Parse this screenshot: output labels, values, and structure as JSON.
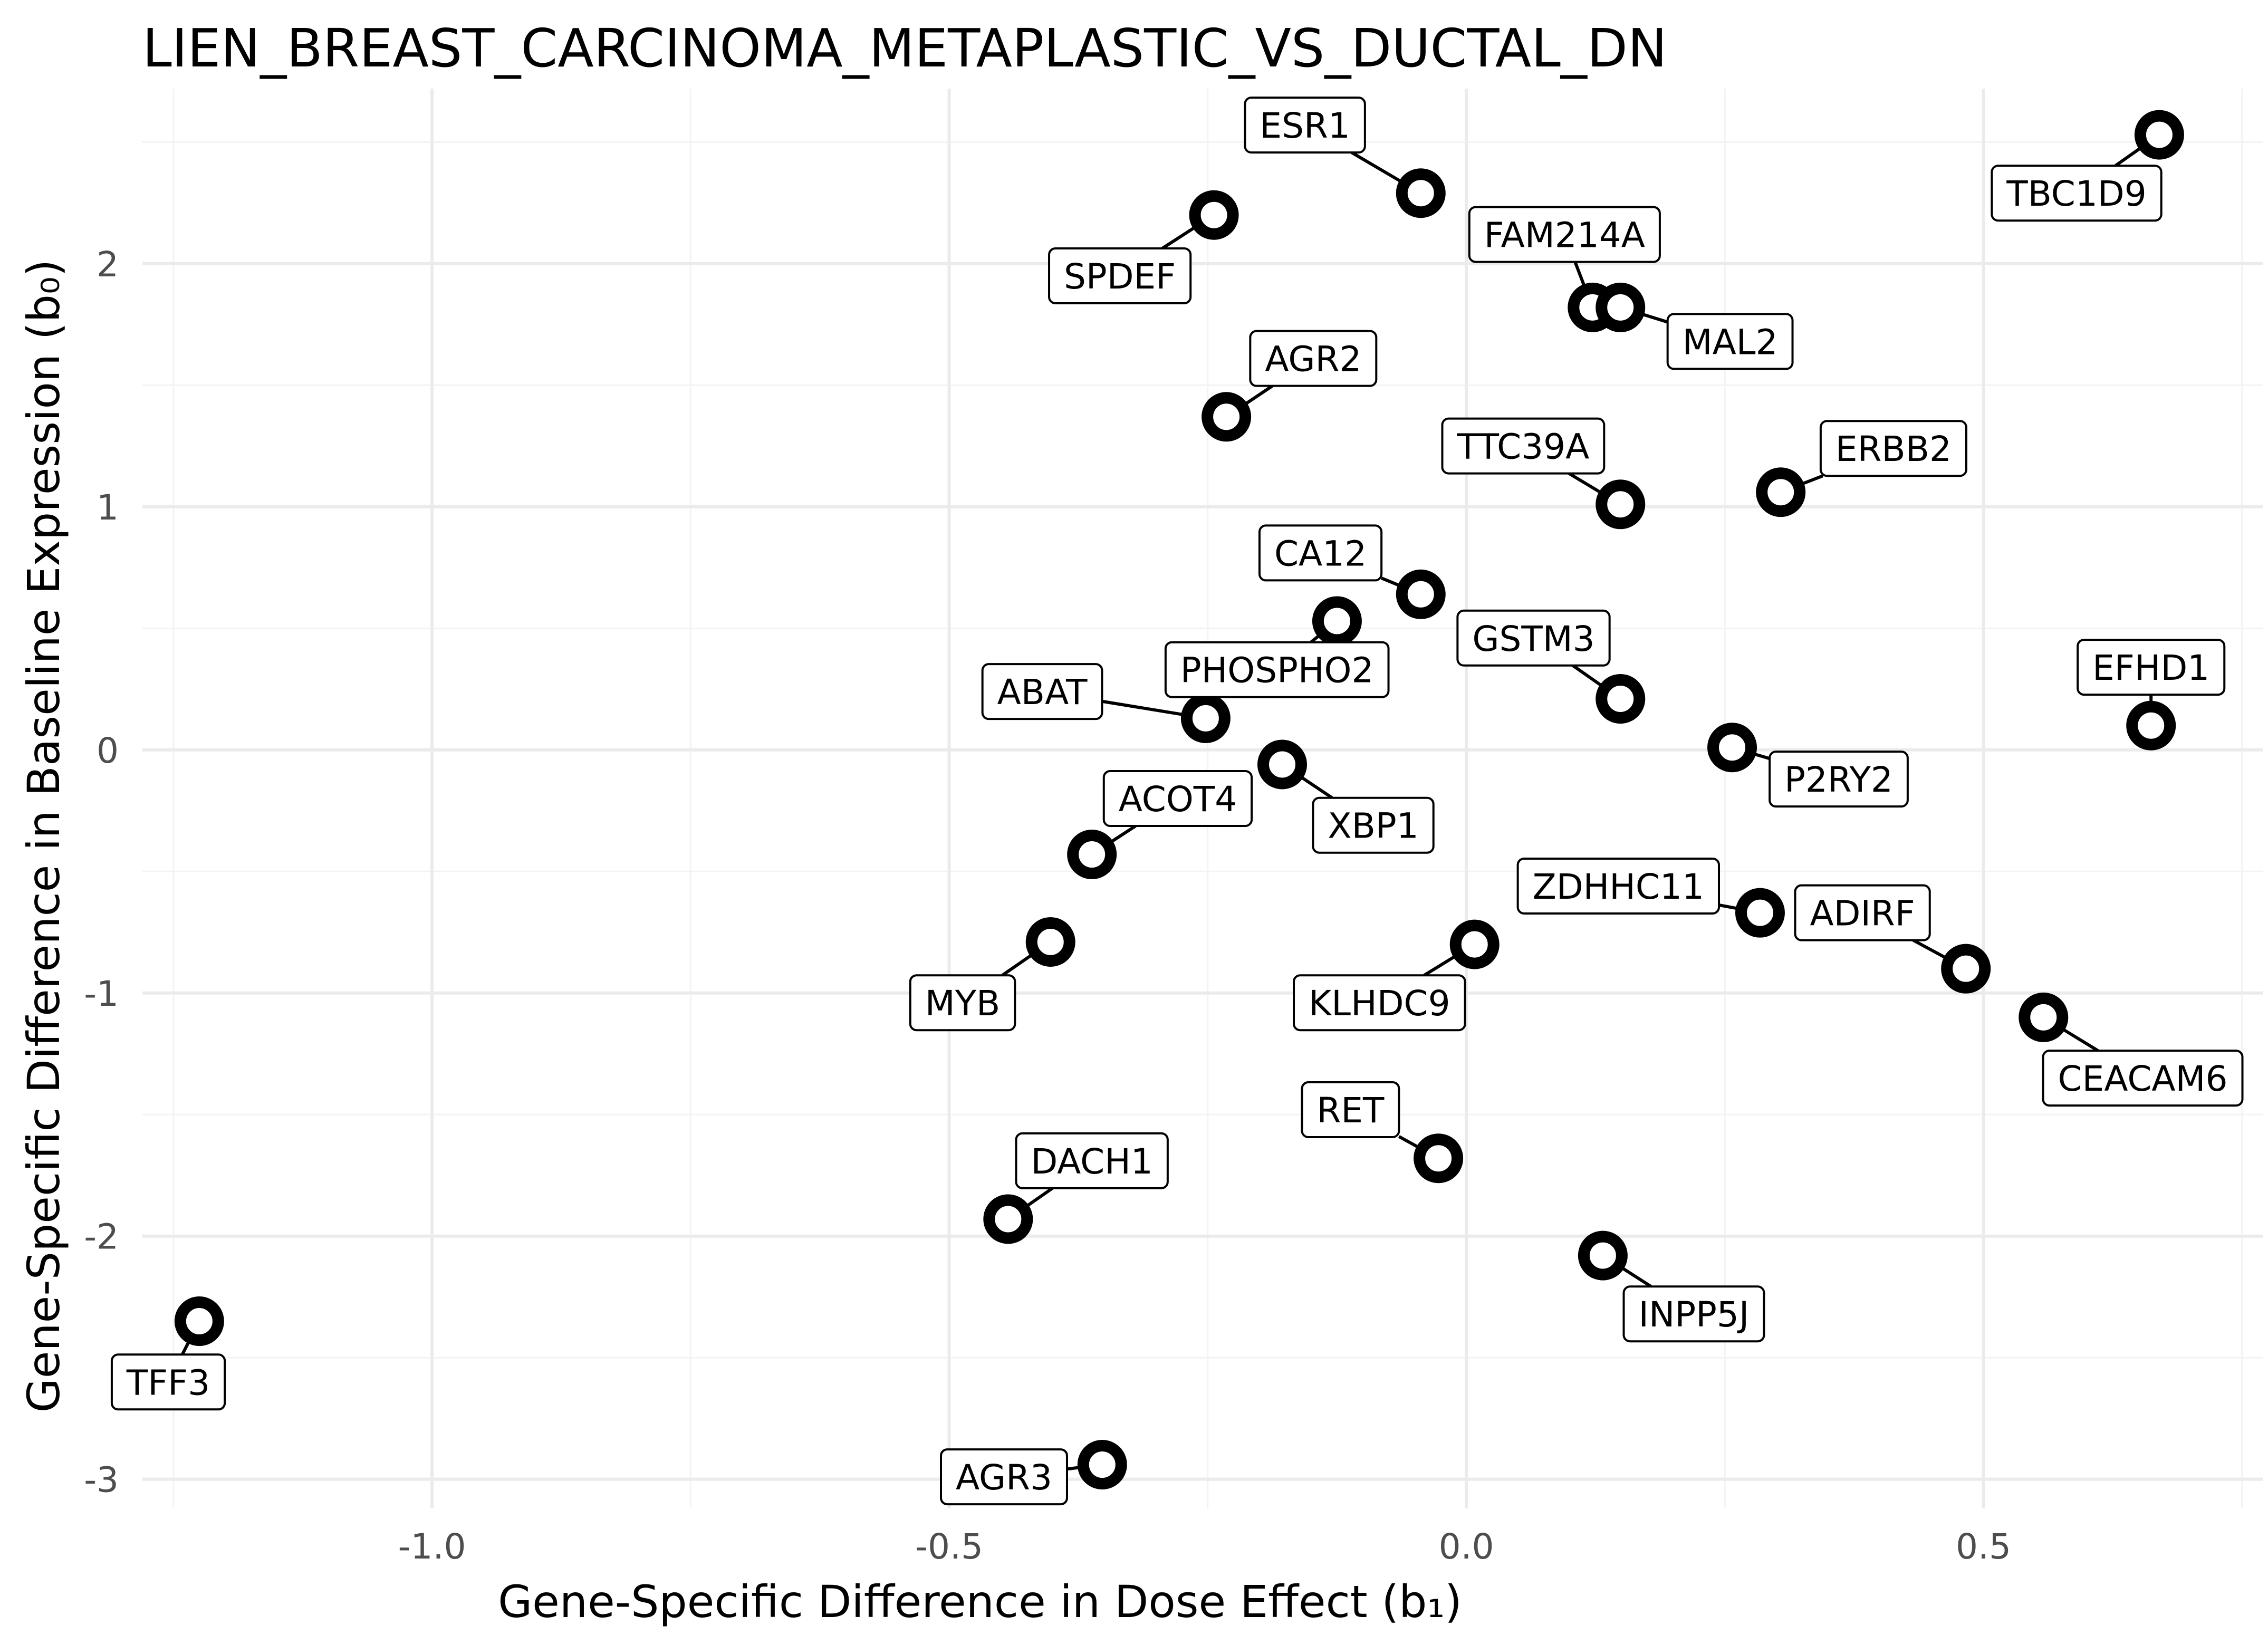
{
  "chart_data": {
    "type": "scatter",
    "title": "LIEN_BREAST_CARCINOMA_METAPLASTIC_VS_DUCTAL_DN",
    "xlabel": "Gene-Specific Difference in Dose Effect (b₁)",
    "ylabel": "Gene-Specific Difference in Baseline Expression (b₀)",
    "xlim": [
      -1.28,
      0.77
    ],
    "ylim": [
      -3.12,
      2.72
    ],
    "x_ticks": [
      -1.0,
      -0.5,
      0.0,
      0.5
    ],
    "x_tick_labels": [
      "-1.0",
      "-0.5",
      "0.0",
      "0.5"
    ],
    "y_ticks": [
      -3,
      -2,
      -1,
      0,
      1,
      2
    ],
    "y_tick_labels": [
      "-3",
      "-2",
      "-1",
      "0",
      "1",
      "2"
    ],
    "grid": true,
    "points": [
      {
        "label": "TBC1D9",
        "x": 0.67,
        "y": 2.53,
        "lx": 0.59,
        "ly": 2.29
      },
      {
        "label": "ESR1",
        "x": -0.044,
        "y": 2.29,
        "lx": -0.156,
        "ly": 2.57
      },
      {
        "label": "SPDEF",
        "x": -0.244,
        "y": 2.2,
        "lx": -0.335,
        "ly": 1.95
      },
      {
        "label": "FAM214A",
        "x": 0.122,
        "y": 1.82,
        "lx": 0.095,
        "ly": 2.12
      },
      {
        "label": "MAL2",
        "x": 0.149,
        "y": 1.82,
        "lx": 0.255,
        "ly": 1.68
      },
      {
        "label": "AGR2",
        "x": -0.232,
        "y": 1.37,
        "lx": -0.148,
        "ly": 1.61
      },
      {
        "label": "TTC39A",
        "x": 0.149,
        "y": 1.01,
        "lx": 0.055,
        "ly": 1.25
      },
      {
        "label": "ERBB2",
        "x": 0.304,
        "y": 1.06,
        "lx": 0.413,
        "ly": 1.24
      },
      {
        "label": "CA12",
        "x": -0.044,
        "y": 0.64,
        "lx": -0.141,
        "ly": 0.81
      },
      {
        "label": "PHOSPHO2",
        "x": -0.125,
        "y": 0.53,
        "lx": -0.183,
        "ly": 0.33
      },
      {
        "label": "GSTM3",
        "x": 0.149,
        "y": 0.21,
        "lx": 0.065,
        "ly": 0.46
      },
      {
        "label": "EFHD1",
        "x": 0.662,
        "y": 0.1,
        "lx": 0.662,
        "ly": 0.34
      },
      {
        "label": "ABAT",
        "x": -0.252,
        "y": 0.13,
        "lx": -0.41,
        "ly": 0.24
      },
      {
        "label": "P2RY2",
        "x": 0.257,
        "y": 0.01,
        "lx": 0.36,
        "ly": -0.12
      },
      {
        "label": "XBP1",
        "x": -0.178,
        "y": -0.06,
        "lx": -0.09,
        "ly": -0.31
      },
      {
        "label": "ACOT4",
        "x": -0.362,
        "y": -0.43,
        "lx": -0.279,
        "ly": -0.2
      },
      {
        "label": "ZDHHC11",
        "x": 0.284,
        "y": -0.67,
        "lx": 0.147,
        "ly": -0.56
      },
      {
        "label": "ADIRF",
        "x": 0.483,
        "y": -0.9,
        "lx": 0.383,
        "ly": -0.67
      },
      {
        "label": "KLHDC9",
        "x": 0.008,
        "y": -0.8,
        "lx": -0.084,
        "ly": -1.04
      },
      {
        "label": "MYB",
        "x": -0.402,
        "y": -0.79,
        "lx": -0.487,
        "ly": -1.04
      },
      {
        "label": "CEACAM6",
        "x": 0.558,
        "y": -1.1,
        "lx": 0.654,
        "ly": -1.35
      },
      {
        "label": "RET",
        "x": -0.027,
        "y": -1.68,
        "lx": -0.112,
        "ly": -1.48
      },
      {
        "label": "DACH1",
        "x": -0.443,
        "y": -1.93,
        "lx": -0.362,
        "ly": -1.69
      },
      {
        "label": "INPP5J",
        "x": 0.132,
        "y": -2.08,
        "lx": 0.22,
        "ly": -2.32
      },
      {
        "label": "TFF3",
        "x": -1.225,
        "y": -2.35,
        "lx": -1.255,
        "ly": -2.6
      },
      {
        "label": "AGR3",
        "x": -0.352,
        "y": -2.94,
        "lx": -0.447,
        "ly": -2.99
      }
    ]
  }
}
